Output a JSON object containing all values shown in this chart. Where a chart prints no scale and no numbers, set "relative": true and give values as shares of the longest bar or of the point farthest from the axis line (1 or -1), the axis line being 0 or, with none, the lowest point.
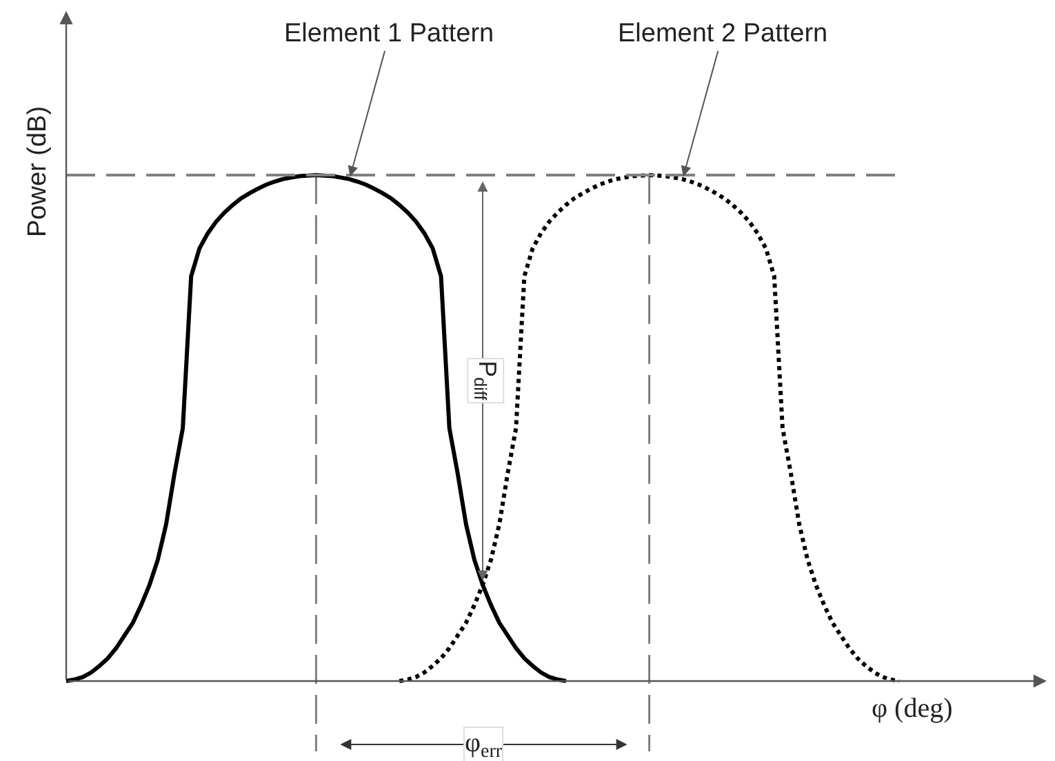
{
  "chart_data": {
    "type": "line",
    "relative": true,
    "xlabel": "φ (deg)",
    "ylabel": "Power (dB)",
    "categories": [
      null,
      null,
      null,
      null,
      null,
      null,
      null,
      null,
      null,
      null,
      null,
      null,
      null,
      null,
      null,
      null,
      null,
      null,
      null,
      null,
      null,
      null,
      null,
      null,
      null,
      null,
      null,
      null,
      null,
      null,
      null,
      null,
      null,
      null,
      null,
      null,
      null,
      null,
      null,
      null,
      null,
      null,
      null,
      null,
      null,
      null,
      null,
      null,
      null,
      null,
      null,
      null,
      null,
      null,
      null,
      null,
      null,
      null,
      null,
      null,
      null,
      null,
      null,
      null,
      null,
      null,
      null,
      null,
      null,
      null,
      null,
      null,
      null,
      null,
      null,
      null,
      null,
      null,
      null,
      null,
      null,
      null,
      null,
      null,
      null,
      null,
      null,
      null,
      null,
      null,
      null,
      null,
      null,
      null,
      null,
      null,
      null,
      null,
      null,
      null,
      null
    ],
    "series": [
      {
        "name": "Element 1 Pattern",
        "color": "#000000",
        "line_style": "solid",
        "values": [
          0,
          0.003,
          0.008,
          0.017,
          0.03,
          0.045,
          0.065,
          0.09,
          0.115,
          0.15,
          0.19,
          0.24,
          0.31,
          0.41,
          0.5,
          0.8,
          0.855,
          0.885,
          0.908,
          0.926,
          0.941,
          0.954,
          0.964,
          0.973,
          0.981,
          0.987,
          0.992,
          0.995,
          0.998,
          0.999,
          1,
          0.999,
          0.998,
          0.995,
          0.992,
          0.987,
          0.981,
          0.973,
          0.964,
          0.954,
          0.941,
          0.926,
          0.908,
          0.885,
          0.855,
          0.8,
          0.5,
          0.41,
          0.31,
          0.24,
          0.19,
          0.15,
          0.115,
          0.09,
          0.065,
          0.045,
          0.03,
          0.017,
          0.008,
          0.003,
          0,
          null,
          null,
          null,
          null,
          null,
          null,
          null,
          null,
          null,
          null,
          null,
          null,
          null,
          null,
          null,
          null,
          null,
          null,
          null,
          null,
          null,
          null,
          null,
          null,
          null,
          null,
          null,
          null,
          null,
          null,
          null,
          null,
          null,
          null,
          null,
          null,
          null,
          null,
          null,
          null
        ]
      },
      {
        "name": "Element 2 Pattern",
        "color": "#000000",
        "line_style": "dotted",
        "values": [
          null,
          null,
          null,
          null,
          null,
          null,
          null,
          null,
          null,
          null,
          null,
          null,
          null,
          null,
          null,
          null,
          null,
          null,
          null,
          null,
          null,
          null,
          null,
          null,
          null,
          null,
          null,
          null,
          null,
          null,
          null,
          null,
          null,
          null,
          null,
          null,
          null,
          null,
          null,
          null,
          0,
          0.003,
          0.008,
          0.017,
          0.03,
          0.045,
          0.065,
          0.09,
          0.115,
          0.15,
          0.19,
          0.24,
          0.31,
          0.41,
          0.5,
          0.8,
          0.855,
          0.885,
          0.908,
          0.926,
          0.941,
          0.954,
          0.964,
          0.973,
          0.981,
          0.987,
          0.992,
          0.995,
          0.998,
          0.999,
          1,
          0.999,
          0.998,
          0.995,
          0.992,
          0.987,
          0.981,
          0.973,
          0.964,
          0.954,
          0.941,
          0.926,
          0.908,
          0.885,
          0.855,
          0.8,
          0.5,
          0.41,
          0.31,
          0.24,
          0.19,
          0.15,
          0.115,
          0.09,
          0.065,
          0.045,
          0.03,
          0.017,
          0.008,
          0.003,
          0
        ]
      }
    ],
    "ref_lines": [
      {
        "axis": "y",
        "value": 1,
        "color": "#808080",
        "line_style": "dashed"
      }
    ],
    "annotations": [
      "P$_{diff}$",
      "φ$_{err}$"
    ]
  }
}
